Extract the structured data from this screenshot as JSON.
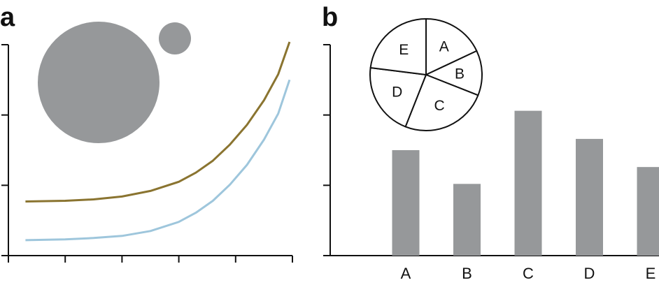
{
  "panels": [
    {
      "letter": "a"
    },
    {
      "letter": "b"
    }
  ],
  "colors": {
    "axis": "#111111",
    "gray": "#96989a",
    "olive": "#8a7430",
    "lightblue": "#9ec6dc",
    "pie_fill": "#ffffff",
    "pie_stroke": "#111111"
  },
  "chart_data": [
    {
      "type": "line",
      "panel": "a",
      "xlim": [
        0,
        5
      ],
      "ylim": [
        0,
        3
      ],
      "x_ticks": [
        0,
        1,
        2,
        3,
        4,
        5
      ],
      "y_ticks": [
        0,
        1,
        2,
        3
      ],
      "series": [
        {
          "color": "#8a7430",
          "x": [
            0.3,
            1.0,
            1.5,
            2.0,
            2.5,
            3.0,
            3.3,
            3.6,
            3.9,
            4.2,
            4.5,
            4.75,
            4.95
          ],
          "y": [
            0.77,
            0.78,
            0.8,
            0.84,
            0.92,
            1.05,
            1.18,
            1.35,
            1.58,
            1.86,
            2.21,
            2.58,
            3.04
          ]
        },
        {
          "color": "#9ec6dc",
          "x": [
            0.3,
            1.0,
            1.5,
            2.0,
            2.5,
            3.0,
            3.3,
            3.6,
            3.9,
            4.2,
            4.5,
            4.75,
            4.95
          ],
          "y": [
            0.22,
            0.23,
            0.25,
            0.28,
            0.35,
            0.48,
            0.61,
            0.78,
            1.01,
            1.29,
            1.65,
            2.02,
            2.5
          ]
        }
      ],
      "inset_circles": [
        {
          "area": 1.0,
          "color": "#96989a"
        },
        {
          "area": 0.07,
          "color": "#96989a"
        }
      ]
    },
    {
      "type": "bar",
      "panel": "b",
      "categories": [
        "A",
        "B",
        "C",
        "D",
        "E"
      ],
      "values": [
        1.5,
        1.02,
        2.06,
        1.66,
        1.26
      ],
      "ylim": [
        0,
        3
      ],
      "y_ticks": [
        0,
        1,
        2,
        3
      ],
      "color": "#96989a",
      "inset_pie": {
        "labels": [
          "A",
          "B",
          "C",
          "D",
          "E"
        ],
        "values": [
          0.18,
          0.13,
          0.25,
          0.21,
          0.23
        ]
      }
    }
  ]
}
